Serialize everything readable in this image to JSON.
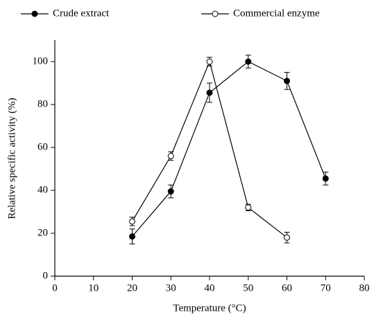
{
  "chart_data": {
    "type": "line",
    "x_label": "Temperature (°C)",
    "y_label": "Relative specific activity (%)",
    "x": [
      20,
      30,
      40,
      50,
      60,
      70
    ],
    "series": [
      {
        "name": "Crude extract",
        "color": "#000000",
        "marker_filled": true,
        "values": [
          18.5,
          39.5,
          85.5,
          100,
          91,
          45.5
        ],
        "errors": [
          3.5,
          3,
          4.5,
          3,
          4,
          3
        ]
      },
      {
        "name": "Commercial enzyme",
        "color": "#000000",
        "marker_filled": false,
        "values": [
          25.5,
          56,
          100,
          32,
          18,
          null
        ],
        "errors": [
          2,
          2,
          2,
          1.5,
          2.5,
          null
        ]
      }
    ],
    "xlim": [
      0,
      80
    ],
    "xticks": [
      0,
      10,
      20,
      30,
      40,
      50,
      60,
      70,
      80
    ],
    "ylim": [
      0,
      110
    ],
    "yticks": [
      0,
      20,
      40,
      60,
      80,
      100
    ],
    "legend": "top",
    "grid": false
  }
}
